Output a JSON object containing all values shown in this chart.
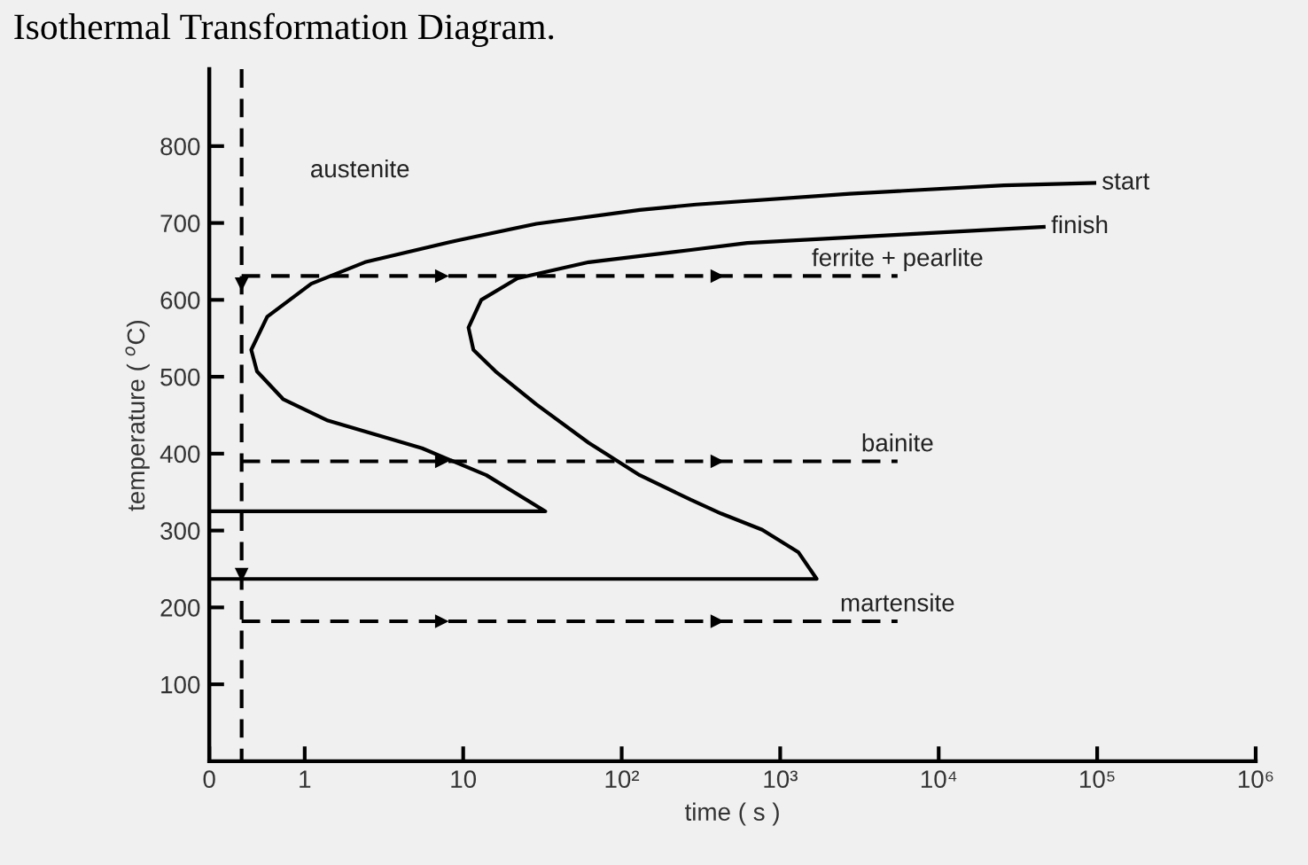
{
  "chart_data": {
    "type": "line",
    "title": "Isothermal Transformation Diagram.",
    "xlabel": "time ( s )",
    "ylabel": "temperature ( $^{o}$C)",
    "log": "x",
    "xlim": [
      0.25,
      1000000
    ],
    "xticks": [
      {
        "value": 0.25,
        "label": "0"
      },
      1,
      10,
      {
        "value": 100,
        "label": "10²"
      },
      {
        "value": 1000,
        "label": "10³"
      },
      {
        "value": 10000,
        "label": "10⁴"
      },
      {
        "value": 100000,
        "label": "10⁵"
      },
      {
        "value": 1000000,
        "label": "10⁶"
      }
    ],
    "ylim": [
      0,
      900
    ],
    "yticks": [
      100,
      200,
      300,
      400,
      500,
      600,
      700,
      800
    ],
    "grid": false,
    "series": [
      {
        "name": "start",
        "color": "#000000",
        "line_style": "solid",
        "x": [
          0.25,
          33,
          14,
          5.5,
          1.4,
          0.73,
          0.5,
          0.46,
          0.58,
          1.1,
          2.4,
          9.5,
          29,
          130,
          295,
          2750,
          25800,
          96000
        ],
        "values": [
          325,
          325,
          372,
          407,
          443,
          471,
          507,
          535,
          578,
          621,
          649,
          678,
          699,
          717,
          724,
          738,
          749,
          752
        ]
      },
      {
        "name": "finish",
        "color": "#000000",
        "line_style": "solid",
        "x": [
          0.25,
          1700,
          1300,
          770,
          425,
          273,
          130,
          62,
          29,
          16,
          11.6,
          10.8,
          13,
          22,
          62,
          273,
          620,
          5900,
          46000
        ],
        "values": [
          237,
          237,
          272,
          301,
          322,
          340,
          372,
          414,
          464,
          507,
          535,
          564,
          600,
          628,
          649,
          665,
          674,
          685,
          695
        ]
      },
      {
        "color": "#000000",
        "line_style": "dashed",
        "x": [
          0.4,
          0.4
        ],
        "values": [
          900,
          0
        ]
      },
      {
        "name": "ferrite + pearlite",
        "color": "#000000",
        "line_style": "dashed",
        "x": [
          0.4,
          5500
        ],
        "values": [
          631,
          631
        ]
      },
      {
        "name": "bainite",
        "color": "#000000",
        "line_style": "dashed",
        "x": [
          0.4,
          5500
        ],
        "values": [
          390,
          390
        ]
      },
      {
        "name": "martensite",
        "color": "#000000",
        "line_style": "dashed",
        "x": [
          0.4,
          5500
        ],
        "values": [
          182,
          182
        ]
      }
    ],
    "annotations": [
      "austenite"
    ]
  }
}
